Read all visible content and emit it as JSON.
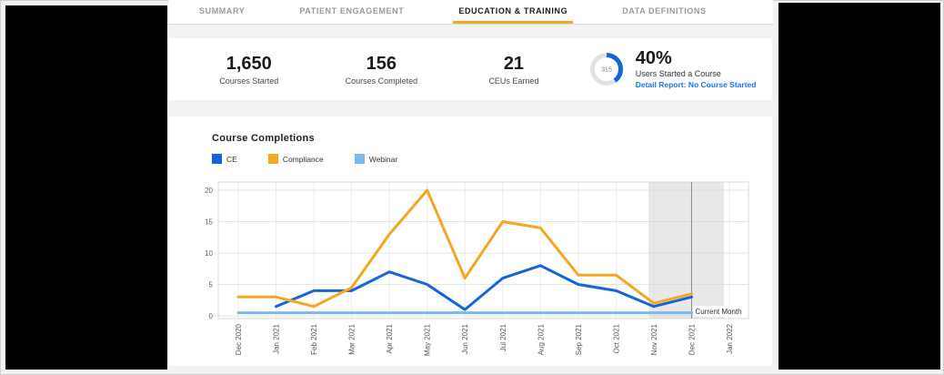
{
  "tabs": [
    {
      "label": "SUMMARY",
      "active": false
    },
    {
      "label": "PATIENT ENGAGEMENT",
      "active": false
    },
    {
      "label": "EDUCATION & TRAINING",
      "active": true
    },
    {
      "label": "DATA DEFINITIONS",
      "active": false
    }
  ],
  "stats": {
    "courses_started": {
      "value": "1,650",
      "label": "Courses Started"
    },
    "courses_completed": {
      "value": "156",
      "label": "Courses Completed"
    },
    "ceus_earned": {
      "value": "21",
      "label": "CEUs Earned"
    },
    "users_started": {
      "donut_center": "315",
      "donut_percent": 40,
      "percent_label": "40%",
      "label": "Users Started a Course",
      "link_label": "Detail Report: No Course Started"
    }
  },
  "colors": {
    "accent_orange": "#f5a623",
    "brand_blue": "#1565d8",
    "link_blue": "#1a73e8",
    "webinar_blue": "#7db8ea",
    "donut_track": "#e2e2e2",
    "shade_gray": "#d8d8d8"
  },
  "chart_data": {
    "type": "line",
    "title": "Course Completions",
    "x": [
      "Dec 2020",
      "Jan 2021",
      "Feb 2021",
      "Mar 2021",
      "Apr 2021",
      "May 2021",
      "Jun 2021",
      "Jul 2021",
      "Aug 2021",
      "Sep 2021",
      "Oct 2021",
      "Nov 2021",
      "Dec 2021",
      "Jan 2022"
    ],
    "yticks": [
      0,
      5,
      10,
      15,
      20
    ],
    "ylim": [
      0,
      21
    ],
    "grid": true,
    "legend_position": "top-left",
    "series": [
      {
        "name": "CE",
        "color": "#1565d8",
        "values": [
          null,
          1.5,
          4,
          4,
          7,
          5,
          1,
          6,
          8,
          5,
          4,
          1.5,
          3,
          null
        ]
      },
      {
        "name": "Compliance",
        "color": "#f5a623",
        "values": [
          3,
          3,
          1.5,
          4.5,
          13,
          20,
          6,
          15,
          14,
          6.5,
          6.5,
          2,
          3.5,
          null
        ]
      },
      {
        "name": "Webinar",
        "color": "#7db8ea",
        "values": [
          0.5,
          0.5,
          0.5,
          0.5,
          0.5,
          0.5,
          0.5,
          0.5,
          0.5,
          0.5,
          0.5,
          0.5,
          0.5,
          null
        ]
      }
    ],
    "annotations": {
      "current_month_label": "Current Month",
      "shade_start": "Nov 2021",
      "shade_end": "Jan 2022",
      "marker_month": "Dec 2021"
    }
  }
}
